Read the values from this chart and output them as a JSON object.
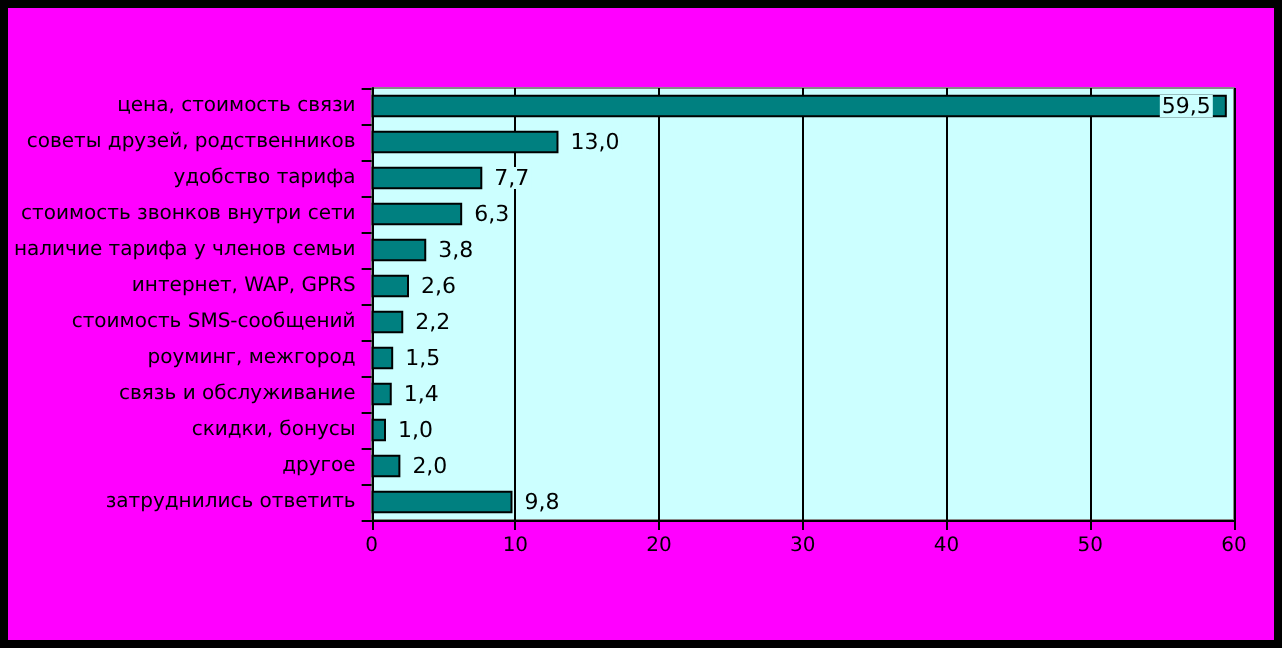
{
  "chart_data": {
    "type": "bar",
    "orientation": "horizontal",
    "categories": [
      "цена, стоимость связи",
      "советы друзей, родственников",
      "удобство тарифа",
      "стоимость звонков внутри сети",
      "наличие тарифа у членов семьи",
      "интернет, WAP, GPRS",
      "стоимость SMS-сообщений",
      "роуминг, межгород",
      "связь и обслуживание",
      "скидки, бонусы",
      "другое",
      "затруднились ответить"
    ],
    "values": [
      59.5,
      13.0,
      7.7,
      6.3,
      3.8,
      2.6,
      2.2,
      1.5,
      1.4,
      1.0,
      2.0,
      9.8
    ],
    "value_labels": [
      "59,5",
      "13,0",
      "7,7",
      "6,3",
      "3,8",
      "2,6",
      "2,2",
      "1,5",
      "1,4",
      "1,0",
      "2,0",
      "9,8"
    ],
    "color": "#008080",
    "xlim": [
      0,
      60
    ],
    "xticks": [
      0,
      10,
      20,
      30,
      40,
      50,
      60
    ],
    "grid": "x"
  }
}
